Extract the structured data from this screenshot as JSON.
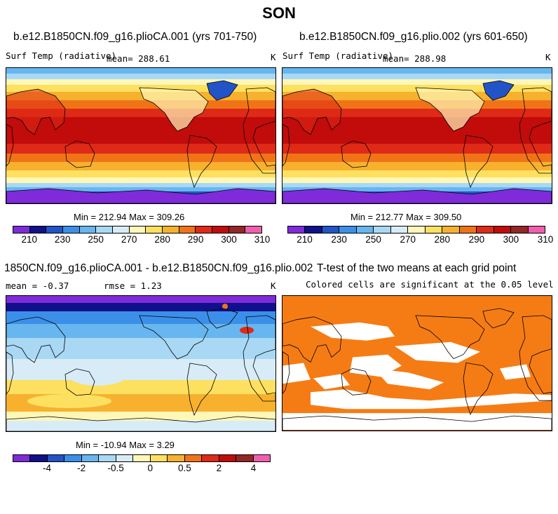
{
  "main_title": "SON",
  "colors": {
    "abs_scale": [
      "#7f2bd9",
      "#10108a",
      "#2254c8",
      "#3b8fe8",
      "#67b6ef",
      "#a9d8f5",
      "#d8ecf7",
      "#fff7b8",
      "#fde060",
      "#f7b12e",
      "#f07417",
      "#de2a16",
      "#c20b0b",
      "#922727",
      "#f05fae"
    ],
    "diff_scale": [
      "#7f2bd9",
      "#10108a",
      "#2254c8",
      "#3b8fe8",
      "#67b6ef",
      "#a9d8f5",
      "#d8ecf7",
      "#fff7b8",
      "#fde060",
      "#f7b12e",
      "#f07417",
      "#de2a16",
      "#c20b0b",
      "#922727",
      "#f05fae"
    ],
    "significant": "#f57c14",
    "land_line": "#000000"
  },
  "panels": {
    "p1": {
      "title": "b.e12.B1850CN.f09_g16.plioCA.001 (yrs 701-750)",
      "variable": "Surf Temp (radiative)",
      "mean_text": "mean=  288.61",
      "units": "K",
      "minmax_text": "Min = 212.94 Max = 309.26"
    },
    "p2": {
      "title": "b.e12.B1850CN.f09_g16.plio.002 (yrs 601-650)",
      "variable": "Surf Temp (radiative)",
      "mean_text": "mean=  288.98",
      "units": "K",
      "minmax_text": "Min = 212.77 Max = 309.50"
    },
    "p3": {
      "title": "1850CN.f09_g16.plioCA.001 - b.e12.B1850CN.f09_g16.plio.002",
      "mean_text": "mean =   -0.37",
      "rmse_text": "rmse =    1.23",
      "units": "K",
      "minmax_text": "Min = -10.94 Max =    3.29"
    },
    "p4": {
      "title": "T-test of the two means at each grid point",
      "subtitle": "Colored cells are significant at the 0.05 level"
    }
  },
  "colorbar_abs": {
    "tick_labels": [
      "210",
      "230",
      "250",
      "270",
      "280",
      "290",
      "300",
      "310"
    ]
  },
  "colorbar_diff": {
    "tick_labels": [
      "-4",
      "-2",
      "-0.5",
      "0",
      "0.5",
      "2",
      "4"
    ]
  },
  "chart_data": [
    {
      "type": "heatmap",
      "title": "b.e12.B1850CN.f09_g16.plioCA.001 (yrs 701-750)",
      "variable": "Surf Temp (radiative)",
      "units": "K",
      "mean": 288.61,
      "min": 212.94,
      "max": 309.26,
      "levels": [
        210,
        220,
        230,
        240,
        250,
        260,
        270,
        275,
        280,
        285,
        290,
        295,
        300,
        305,
        310
      ]
    },
    {
      "type": "heatmap",
      "title": "b.e12.B1850CN.f09_g16.plio.002 (yrs 601-650)",
      "variable": "Surf Temp (radiative)",
      "units": "K",
      "mean": 288.98,
      "min": 212.77,
      "max": 309.5,
      "levels": [
        210,
        220,
        230,
        240,
        250,
        260,
        270,
        275,
        280,
        285,
        290,
        295,
        300,
        305,
        310
      ]
    },
    {
      "type": "heatmap",
      "title": "1850CN.f09_g16.plioCA.001 - b.e12.B1850CN.f09_g16.plio.002",
      "units": "K",
      "mean": -0.37,
      "rmse": 1.23,
      "min": -10.94,
      "max": 3.29,
      "levels": [
        -5,
        -4,
        -3,
        -2,
        -1,
        -0.5,
        -0.25,
        0,
        0.25,
        0.5,
        1,
        2,
        3,
        4,
        5
      ]
    },
    {
      "type": "heatmap",
      "title": "T-test of the two means at each grid point",
      "subtitle": "Colored cells are significant at the 0.05 level",
      "significance_level": 0.05
    }
  ]
}
